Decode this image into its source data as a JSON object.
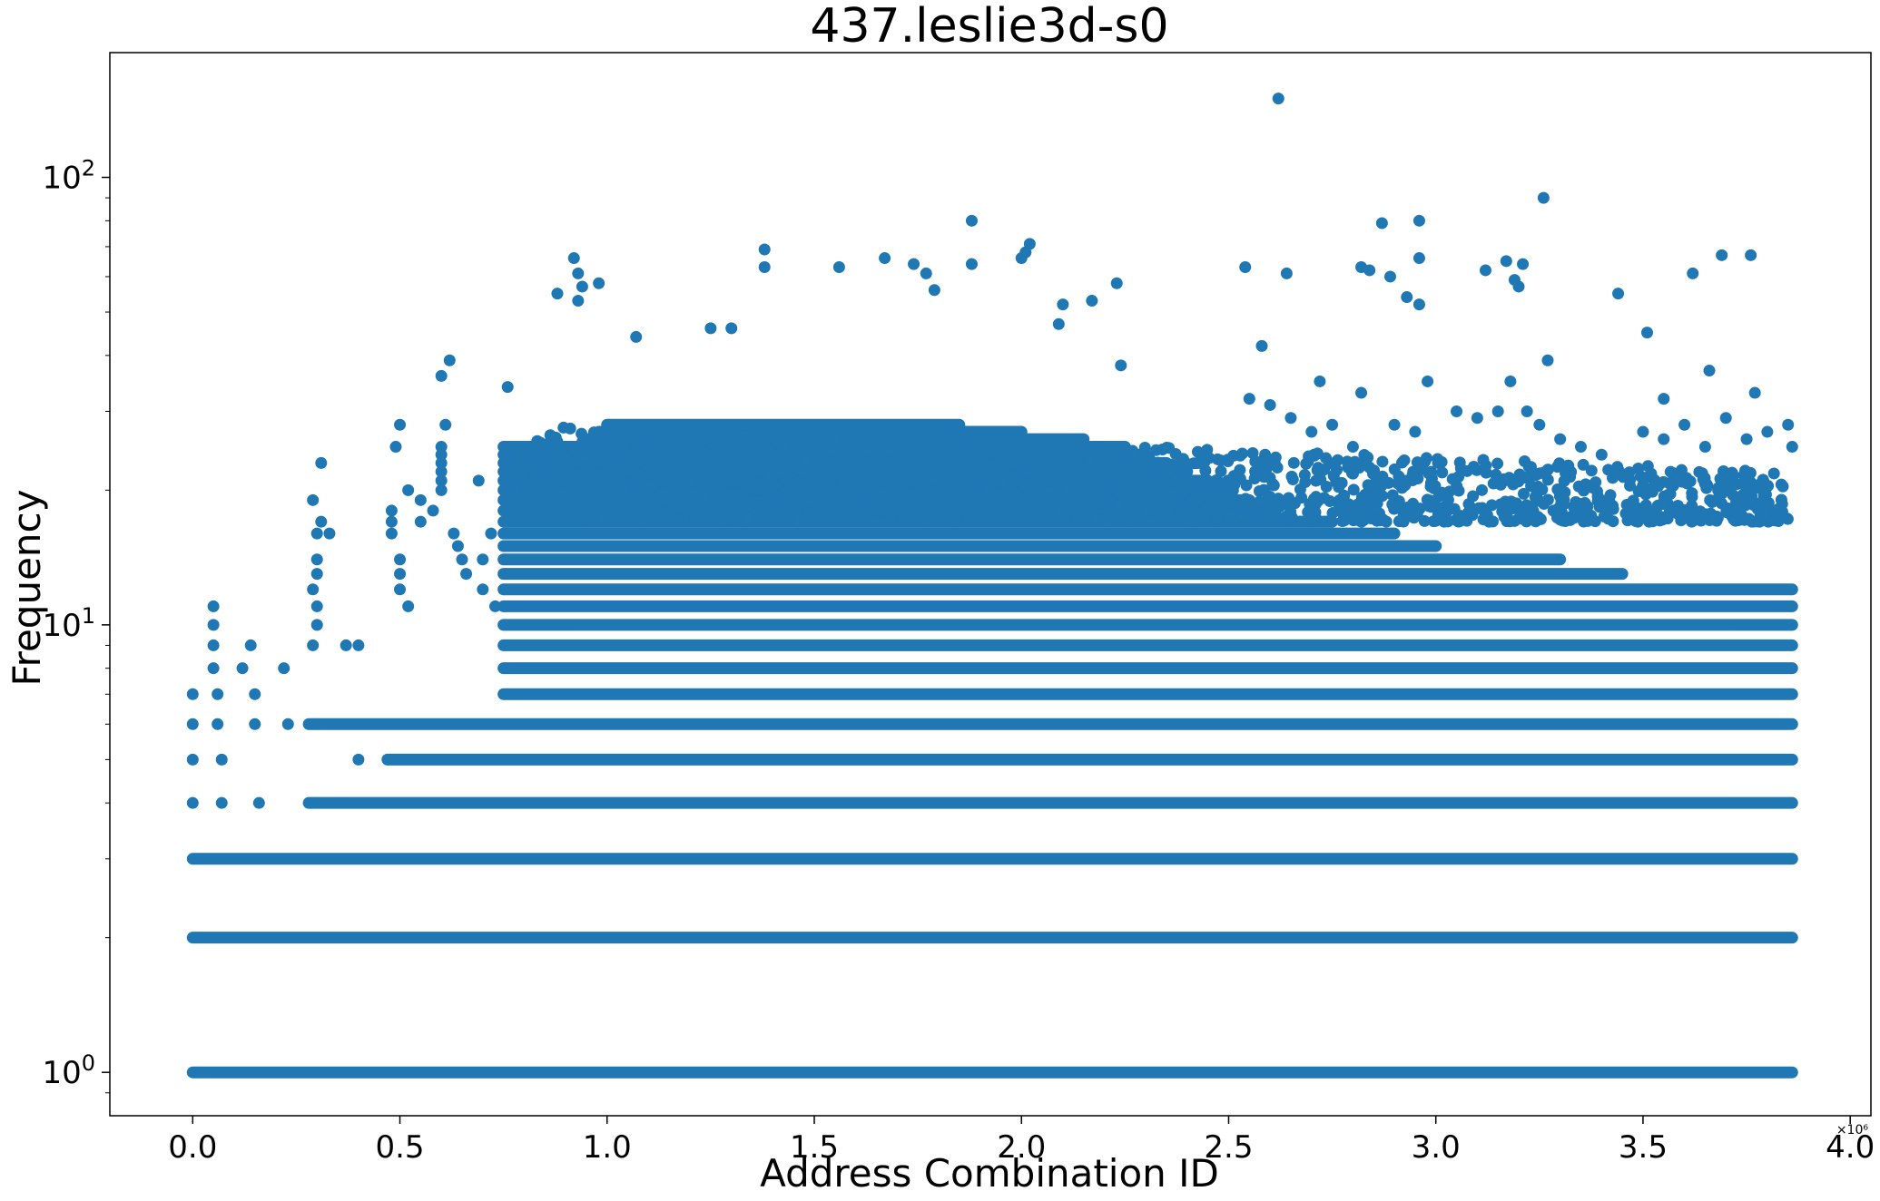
{
  "chart_data": {
    "type": "scatter",
    "title": "437.leslie3d-s0",
    "xlabel": "Address Combination ID",
    "ylabel": "Frequency",
    "x_scale_label": "×10⁶",
    "x_scale_factor": 1000000,
    "y_scale": "log",
    "xlim": [
      -0.2,
      4.05
    ],
    "ylim": [
      0.8,
      190
    ],
    "grid": false,
    "marker_color": "#1f77b4",
    "x_ticks": [
      0.0,
      0.5,
      1.0,
      1.5,
      2.0,
      2.5,
      3.0,
      3.5,
      4.0
    ],
    "x_tick_labels": [
      "0.0",
      "0.5",
      "1.0",
      "1.5",
      "2.0",
      "2.5",
      "3.0",
      "3.5",
      "4.0"
    ],
    "y_ticks": [
      1,
      10,
      100
    ],
    "y_tick_labels": [
      {
        "base": "10",
        "exp": "0"
      },
      {
        "base": "10",
        "exp": "1"
      },
      {
        "base": "10",
        "exp": "2"
      }
    ],
    "bands": [
      {
        "y": 1,
        "x_start": 0.0,
        "x_end": 3.86
      },
      {
        "y": 2,
        "x_start": 0.0,
        "x_end": 3.86
      },
      {
        "y": 3,
        "x_start": 0.0,
        "x_end": 3.86
      },
      {
        "y": 4,
        "x_start": 0.28,
        "x_end": 3.86
      },
      {
        "y": 5,
        "x_start": 0.47,
        "x_end": 3.86
      },
      {
        "y": 6,
        "x_start": 0.28,
        "x_end": 3.86
      },
      {
        "y": 7,
        "x_start": 0.75,
        "x_end": 3.86
      },
      {
        "y": 8,
        "x_start": 0.75,
        "x_end": 3.86
      },
      {
        "y": 9,
        "x_start": 0.75,
        "x_end": 3.86
      },
      {
        "y": 10,
        "x_start": 0.75,
        "x_end": 3.86
      },
      {
        "y": 11,
        "x_start": 0.75,
        "x_end": 3.86
      },
      {
        "y": 12,
        "x_start": 0.75,
        "x_end": 3.86
      },
      {
        "y": 13,
        "x_start": 0.75,
        "x_end": 3.45
      },
      {
        "y": 14,
        "x_start": 0.75,
        "x_end": 3.3
      },
      {
        "y": 15,
        "x_start": 0.75,
        "x_end": 3.0
      },
      {
        "y": 16,
        "x_start": 0.75,
        "x_end": 2.9
      },
      {
        "y": 17,
        "x_start": 0.75,
        "x_end": 2.75
      },
      {
        "y": 18,
        "x_start": 0.75,
        "x_end": 2.6
      },
      {
        "y": 19,
        "x_start": 0.75,
        "x_end": 2.55
      },
      {
        "y": 20,
        "x_start": 0.75,
        "x_end": 2.5
      },
      {
        "y": 21,
        "x_start": 0.75,
        "x_end": 2.45
      },
      {
        "y": 22,
        "x_start": 0.75,
        "x_end": 2.4
      },
      {
        "y": 23,
        "x_start": 0.75,
        "x_end": 2.35
      },
      {
        "y": 24,
        "x_start": 0.75,
        "x_end": 2.3
      },
      {
        "y": 25,
        "x_start": 0.75,
        "x_end": 2.25
      },
      {
        "y": 26,
        "x_start": 0.95,
        "x_end": 2.15
      },
      {
        "y": 27,
        "x_start": 0.98,
        "x_end": 2.0
      },
      {
        "y": 28,
        "x_start": 1.0,
        "x_end": 1.85
      }
    ],
    "points": [
      {
        "x": 0.0,
        "y": 7
      },
      {
        "x": 0.0,
        "y": 6
      },
      {
        "x": 0.0,
        "y": 5
      },
      {
        "x": 0.0,
        "y": 4
      },
      {
        "x": 0.05,
        "y": 11
      },
      {
        "x": 0.05,
        "y": 10
      },
      {
        "x": 0.05,
        "y": 9
      },
      {
        "x": 0.05,
        "y": 8
      },
      {
        "x": 0.06,
        "y": 7
      },
      {
        "x": 0.06,
        "y": 6
      },
      {
        "x": 0.07,
        "y": 5
      },
      {
        "x": 0.07,
        "y": 4
      },
      {
        "x": 0.12,
        "y": 8
      },
      {
        "x": 0.14,
        "y": 9
      },
      {
        "x": 0.15,
        "y": 7
      },
      {
        "x": 0.15,
        "y": 6
      },
      {
        "x": 0.16,
        "y": 4
      },
      {
        "x": 0.22,
        "y": 8
      },
      {
        "x": 0.23,
        "y": 6
      },
      {
        "x": 0.29,
        "y": 19
      },
      {
        "x": 0.3,
        "y": 16
      },
      {
        "x": 0.31,
        "y": 23
      },
      {
        "x": 0.31,
        "y": 17
      },
      {
        "x": 0.3,
        "y": 14
      },
      {
        "x": 0.3,
        "y": 13
      },
      {
        "x": 0.29,
        "y": 12
      },
      {
        "x": 0.3,
        "y": 11
      },
      {
        "x": 0.3,
        "y": 10
      },
      {
        "x": 0.29,
        "y": 9
      },
      {
        "x": 0.33,
        "y": 16
      },
      {
        "x": 0.37,
        "y": 9
      },
      {
        "x": 0.4,
        "y": 9
      },
      {
        "x": 0.4,
        "y": 5
      },
      {
        "x": 0.49,
        "y": 25
      },
      {
        "x": 0.5,
        "y": 28
      },
      {
        "x": 0.52,
        "y": 20
      },
      {
        "x": 0.48,
        "y": 18
      },
      {
        "x": 0.48,
        "y": 17
      },
      {
        "x": 0.48,
        "y": 16
      },
      {
        "x": 0.5,
        "y": 14
      },
      {
        "x": 0.5,
        "y": 13
      },
      {
        "x": 0.5,
        "y": 12
      },
      {
        "x": 0.52,
        "y": 11
      },
      {
        "x": 0.55,
        "y": 19
      },
      {
        "x": 0.55,
        "y": 17
      },
      {
        "x": 0.6,
        "y": 36
      },
      {
        "x": 0.62,
        "y": 39
      },
      {
        "x": 0.61,
        "y": 28
      },
      {
        "x": 0.6,
        "y": 25
      },
      {
        "x": 0.6,
        "y": 24
      },
      {
        "x": 0.6,
        "y": 23
      },
      {
        "x": 0.6,
        "y": 22
      },
      {
        "x": 0.6,
        "y": 21
      },
      {
        "x": 0.6,
        "y": 20
      },
      {
        "x": 0.58,
        "y": 18
      },
      {
        "x": 0.63,
        "y": 16
      },
      {
        "x": 0.64,
        "y": 15
      },
      {
        "x": 0.65,
        "y": 14
      },
      {
        "x": 0.66,
        "y": 13
      },
      {
        "x": 0.7,
        "y": 14
      },
      {
        "x": 0.7,
        "y": 12
      },
      {
        "x": 0.69,
        "y": 21
      },
      {
        "x": 0.72,
        "y": 16
      },
      {
        "x": 0.73,
        "y": 11
      },
      {
        "x": 0.76,
        "y": 34
      },
      {
        "x": 0.88,
        "y": 55
      },
      {
        "x": 0.92,
        "y": 66
      },
      {
        "x": 0.93,
        "y": 61
      },
      {
        "x": 0.93,
        "y": 53
      },
      {
        "x": 0.94,
        "y": 57
      },
      {
        "x": 0.98,
        "y": 58
      },
      {
        "x": 1.07,
        "y": 44
      },
      {
        "x": 1.25,
        "y": 46
      },
      {
        "x": 1.3,
        "y": 46
      },
      {
        "x": 1.38,
        "y": 63
      },
      {
        "x": 1.38,
        "y": 69
      },
      {
        "x": 1.56,
        "y": 63
      },
      {
        "x": 1.67,
        "y": 66
      },
      {
        "x": 1.74,
        "y": 64
      },
      {
        "x": 1.77,
        "y": 61
      },
      {
        "x": 1.79,
        "y": 56
      },
      {
        "x": 1.88,
        "y": 80
      },
      {
        "x": 1.88,
        "y": 64
      },
      {
        "x": 2.0,
        "y": 66
      },
      {
        "x": 2.01,
        "y": 68
      },
      {
        "x": 2.02,
        "y": 71
      },
      {
        "x": 2.09,
        "y": 47
      },
      {
        "x": 2.1,
        "y": 52
      },
      {
        "x": 2.17,
        "y": 53
      },
      {
        "x": 2.23,
        "y": 58
      },
      {
        "x": 2.24,
        "y": 38
      },
      {
        "x": 2.54,
        "y": 63
      },
      {
        "x": 2.58,
        "y": 42
      },
      {
        "x": 2.62,
        "y": 150
      },
      {
        "x": 2.64,
        "y": 61
      },
      {
        "x": 2.72,
        "y": 35
      },
      {
        "x": 2.82,
        "y": 33
      },
      {
        "x": 2.82,
        "y": 63
      },
      {
        "x": 2.84,
        "y": 62
      },
      {
        "x": 2.87,
        "y": 79
      },
      {
        "x": 2.89,
        "y": 60
      },
      {
        "x": 2.93,
        "y": 54
      },
      {
        "x": 2.96,
        "y": 80
      },
      {
        "x": 2.96,
        "y": 66
      },
      {
        "x": 2.96,
        "y": 52
      },
      {
        "x": 2.98,
        "y": 35
      },
      {
        "x": 3.12,
        "y": 62
      },
      {
        "x": 3.17,
        "y": 65
      },
      {
        "x": 3.19,
        "y": 59
      },
      {
        "x": 3.2,
        "y": 57
      },
      {
        "x": 3.21,
        "y": 64
      },
      {
        "x": 3.26,
        "y": 90
      },
      {
        "x": 3.27,
        "y": 39
      },
      {
        "x": 3.44,
        "y": 55
      },
      {
        "x": 3.51,
        "y": 45
      },
      {
        "x": 3.55,
        "y": 32
      },
      {
        "x": 3.62,
        "y": 61
      },
      {
        "x": 3.66,
        "y": 37
      },
      {
        "x": 3.69,
        "y": 67
      },
      {
        "x": 3.76,
        "y": 67
      },
      {
        "x": 3.77,
        "y": 33
      },
      {
        "x": 2.55,
        "y": 32
      },
      {
        "x": 2.6,
        "y": 31
      },
      {
        "x": 2.65,
        "y": 29
      },
      {
        "x": 2.7,
        "y": 27
      },
      {
        "x": 2.75,
        "y": 28
      },
      {
        "x": 2.8,
        "y": 25
      },
      {
        "x": 2.9,
        "y": 28
      },
      {
        "x": 2.95,
        "y": 27
      },
      {
        "x": 3.05,
        "y": 30
      },
      {
        "x": 3.1,
        "y": 29
      },
      {
        "x": 3.15,
        "y": 30
      },
      {
        "x": 3.18,
        "y": 35
      },
      {
        "x": 3.22,
        "y": 30
      },
      {
        "x": 3.25,
        "y": 28
      },
      {
        "x": 3.3,
        "y": 26
      },
      {
        "x": 3.35,
        "y": 25
      },
      {
        "x": 3.4,
        "y": 24
      },
      {
        "x": 3.5,
        "y": 27
      },
      {
        "x": 3.55,
        "y": 26
      },
      {
        "x": 3.6,
        "y": 28
      },
      {
        "x": 3.65,
        "y": 25
      },
      {
        "x": 3.7,
        "y": 29
      },
      {
        "x": 3.75,
        "y": 26
      },
      {
        "x": 3.8,
        "y": 27
      },
      {
        "x": 3.85,
        "y": 28
      },
      {
        "x": 3.86,
        "y": 25
      }
    ],
    "dense_cloud": {
      "x_start": 0.76,
      "x_end": 3.85,
      "y_max_start": 28,
      "y_max_end": 22,
      "y_min": 17
    }
  }
}
